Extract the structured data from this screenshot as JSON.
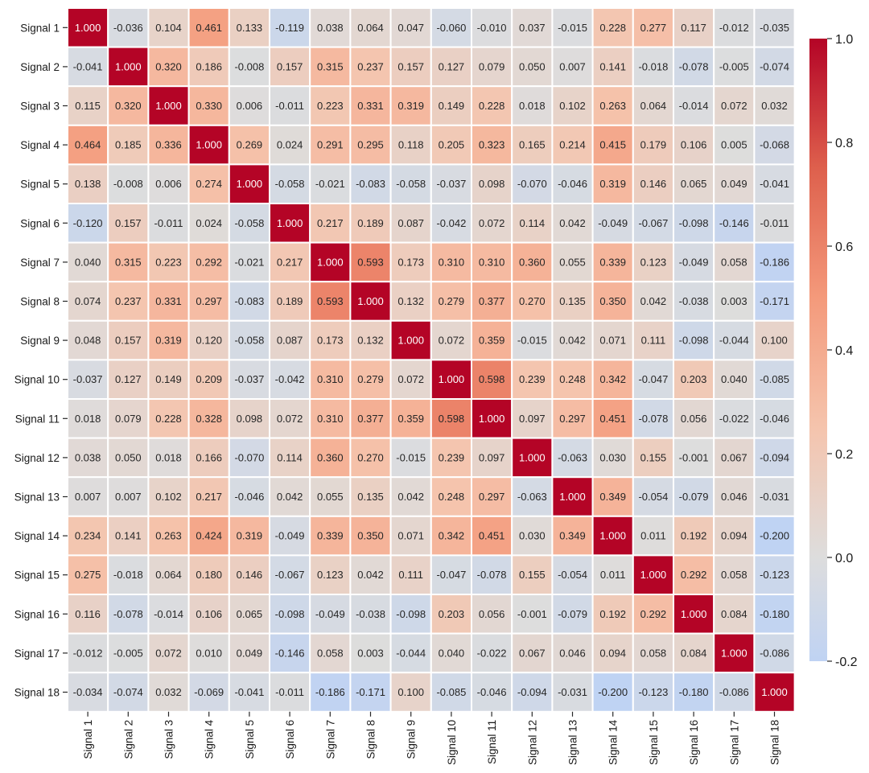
{
  "chart_data": {
    "type": "heatmap",
    "title": "",
    "xlabel": "",
    "ylabel": "",
    "categories": [
      "Signal 1",
      "Signal 2",
      "Signal 3",
      "Signal 4",
      "Signal 5",
      "Signal 6",
      "Signal 7",
      "Signal 8",
      "Signal 9",
      "Signal 10",
      "Signal 11",
      "Signal 12",
      "Signal 13",
      "Signal 14",
      "Signal 15",
      "Signal 16",
      "Signal 17",
      "Signal 18"
    ],
    "matrix": [
      [
        1.0,
        -0.036,
        0.104,
        0.461,
        0.133,
        -0.119,
        0.038,
        0.064,
        0.047,
        -0.06,
        -0.01,
        0.037,
        -0.015,
        0.228,
        0.277,
        0.117,
        -0.012,
        -0.035
      ],
      [
        -0.041,
        1.0,
        0.32,
        0.186,
        -0.008,
        0.157,
        0.315,
        0.237,
        0.157,
        0.127,
        0.079,
        0.05,
        0.007,
        0.141,
        -0.018,
        -0.078,
        -0.005,
        -0.074
      ],
      [
        0.115,
        0.32,
        1.0,
        0.33,
        0.006,
        -0.011,
        0.223,
        0.331,
        0.319,
        0.149,
        0.228,
        0.018,
        0.102,
        0.263,
        0.064,
        -0.014,
        0.072,
        0.032
      ],
      [
        0.464,
        0.185,
        0.336,
        1.0,
        0.269,
        0.024,
        0.291,
        0.295,
        0.118,
        0.205,
        0.323,
        0.165,
        0.214,
        0.415,
        0.179,
        0.106,
        0.005,
        -0.068
      ],
      [
        0.138,
        -0.008,
        0.006,
        0.274,
        1.0,
        -0.058,
        -0.021,
        -0.083,
        -0.058,
        -0.037,
        0.098,
        -0.07,
        -0.046,
        0.319,
        0.146,
        0.065,
        0.049,
        -0.041
      ],
      [
        -0.12,
        0.157,
        -0.011,
        0.024,
        -0.058,
        1.0,
        0.217,
        0.189,
        0.087,
        -0.042,
        0.072,
        0.114,
        0.042,
        -0.049,
        -0.067,
        -0.098,
        -0.146,
        -0.011
      ],
      [
        0.04,
        0.315,
        0.223,
        0.292,
        -0.021,
        0.217,
        1.0,
        0.593,
        0.173,
        0.31,
        0.31,
        0.36,
        0.055,
        0.339,
        0.123,
        -0.049,
        0.058,
        -0.186
      ],
      [
        0.074,
        0.237,
        0.331,
        0.297,
        -0.083,
        0.189,
        0.593,
        1.0,
        0.132,
        0.279,
        0.377,
        0.27,
        0.135,
        0.35,
        0.042,
        -0.038,
        0.003,
        -0.171
      ],
      [
        0.048,
        0.157,
        0.319,
        0.12,
        -0.058,
        0.087,
        0.173,
        0.132,
        1.0,
        0.072,
        0.359,
        -0.015,
        0.042,
        0.071,
        0.111,
        -0.098,
        -0.044,
        0.1
      ],
      [
        -0.037,
        0.127,
        0.149,
        0.209,
        -0.037,
        -0.042,
        0.31,
        0.279,
        0.072,
        1.0,
        0.598,
        0.239,
        0.248,
        0.342,
        -0.047,
        0.203,
        0.04,
        -0.085
      ],
      [
        0.018,
        0.079,
        0.228,
        0.328,
        0.098,
        0.072,
        0.31,
        0.377,
        0.359,
        0.598,
        1.0,
        0.097,
        0.297,
        0.451,
        -0.078,
        0.056,
        -0.022,
        -0.046
      ],
      [
        0.038,
        0.05,
        0.018,
        0.166,
        -0.07,
        0.114,
        0.36,
        0.27,
        -0.015,
        0.239,
        0.097,
        1.0,
        -0.063,
        0.03,
        0.155,
        -0.001,
        0.067,
        -0.094
      ],
      [
        0.007,
        0.007,
        0.102,
        0.217,
        -0.046,
        0.042,
        0.055,
        0.135,
        0.042,
        0.248,
        0.297,
        -0.063,
        1.0,
        0.349,
        -0.054,
        -0.079,
        0.046,
        -0.031
      ],
      [
        0.234,
        0.141,
        0.263,
        0.424,
        0.319,
        -0.049,
        0.339,
        0.35,
        0.071,
        0.342,
        0.451,
        0.03,
        0.349,
        1.0,
        0.011,
        0.192,
        0.094,
        -0.2
      ],
      [
        0.275,
        -0.018,
        0.064,
        0.18,
        0.146,
        -0.067,
        0.123,
        0.042,
        0.111,
        -0.047,
        -0.078,
        0.155,
        -0.054,
        0.011,
        1.0,
        0.292,
        0.058,
        -0.123
      ],
      [
        0.116,
        -0.078,
        -0.014,
        0.106,
        0.065,
        -0.098,
        -0.049,
        -0.038,
        -0.098,
        0.203,
        0.056,
        -0.001,
        -0.079,
        0.192,
        0.292,
        1.0,
        0.084,
        -0.18
      ],
      [
        -0.012,
        -0.005,
        0.072,
        0.01,
        0.049,
        -0.146,
        0.058,
        0.003,
        -0.044,
        0.04,
        -0.022,
        0.067,
        0.046,
        0.094,
        0.058,
        0.084,
        1.0,
        -0.086
      ],
      [
        -0.034,
        -0.074,
        0.032,
        -0.069,
        -0.041,
        -0.011,
        -0.186,
        -0.171,
        0.1,
        -0.085,
        -0.046,
        -0.094,
        -0.031,
        -0.2,
        -0.123,
        -0.18,
        -0.086,
        1.0
      ]
    ],
    "value_format_decimals": 3,
    "colorscale": "coolwarm",
    "vmin": -0.2,
    "vmax": 1.0,
    "center": 0.0,
    "colorbar_ticks": [
      "-0.2",
      "0.0",
      "0.2",
      "0.4",
      "0.6",
      "0.8",
      "1.0"
    ],
    "colors": {
      "low": "#3b4cc0",
      "mid": "#dddddd",
      "high": "#b40426",
      "cell_border": "#ffffff"
    }
  }
}
